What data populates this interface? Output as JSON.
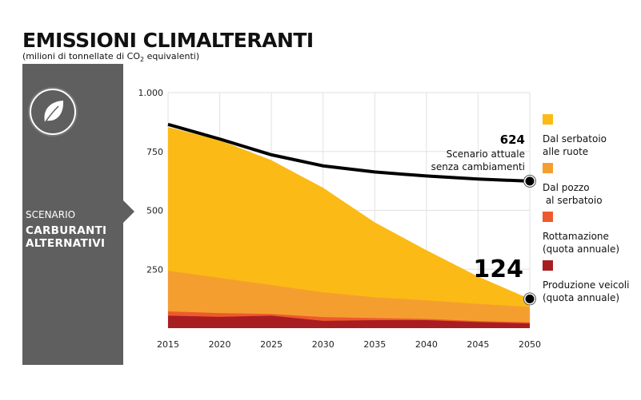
{
  "header": {
    "title": "EMISSIONI CLIMALTERANTI",
    "subtitle_pre": "(milioni di tonnellate di CO",
    "subtitle_sub": "2",
    "subtitle_post": " equivalenti)"
  },
  "scenario": {
    "label": "SCENARIO",
    "name_line1": "CARBURANTI",
    "name_line2": "ALTERNATIVI",
    "icon": "leaf-icon",
    "panel_color": "#5f5f5f"
  },
  "chart_data": {
    "type": "area",
    "stacked": true,
    "x": [
      2015,
      2020,
      2025,
      2030,
      2035,
      2040,
      2045,
      2050
    ],
    "xtick_labels": [
      "2015",
      "2020",
      "2025",
      "2030",
      "2035",
      "2040",
      "2045",
      "2050"
    ],
    "ylim": [
      0,
      1000
    ],
    "yticks": [
      250,
      500,
      750,
      1000
    ],
    "ytick_labels": [
      "250",
      "500",
      "750",
      "1.000"
    ],
    "grid": true,
    "legend_placement": "right",
    "series": [
      {
        "name": "Produzione veicoli\n(quota annuale)",
        "color": "#a81d22",
        "values": [
          53,
          48,
          53,
          31,
          34,
          34,
          26,
          20
        ]
      },
      {
        "name": "Rottamazione\n(quota annuale)",
        "color": "#ee5a2d",
        "values": [
          18,
          16,
          7,
          16,
          9,
          5,
          4,
          5
        ]
      },
      {
        "name": "Dal pozzo\n al serbatoio",
        "color": "#f59e30",
        "values": [
          173,
          149,
          123,
          105,
          88,
          79,
          73,
          65
        ]
      },
      {
        "name": "Dal serbatoio\nalle ruote",
        "color": "#fbba16",
        "values": [
          610,
          585,
          530,
          444,
          318,
          213,
          116,
          34
        ]
      }
    ],
    "baseline": {
      "label_value": "624",
      "label_line1": "Scenario attuale",
      "label_line2": "senza cambiamenti",
      "color": "#000000",
      "values": [
        865,
        803,
        736,
        689,
        663,
        646,
        633,
        624
      ]
    },
    "total_label": "124"
  }
}
